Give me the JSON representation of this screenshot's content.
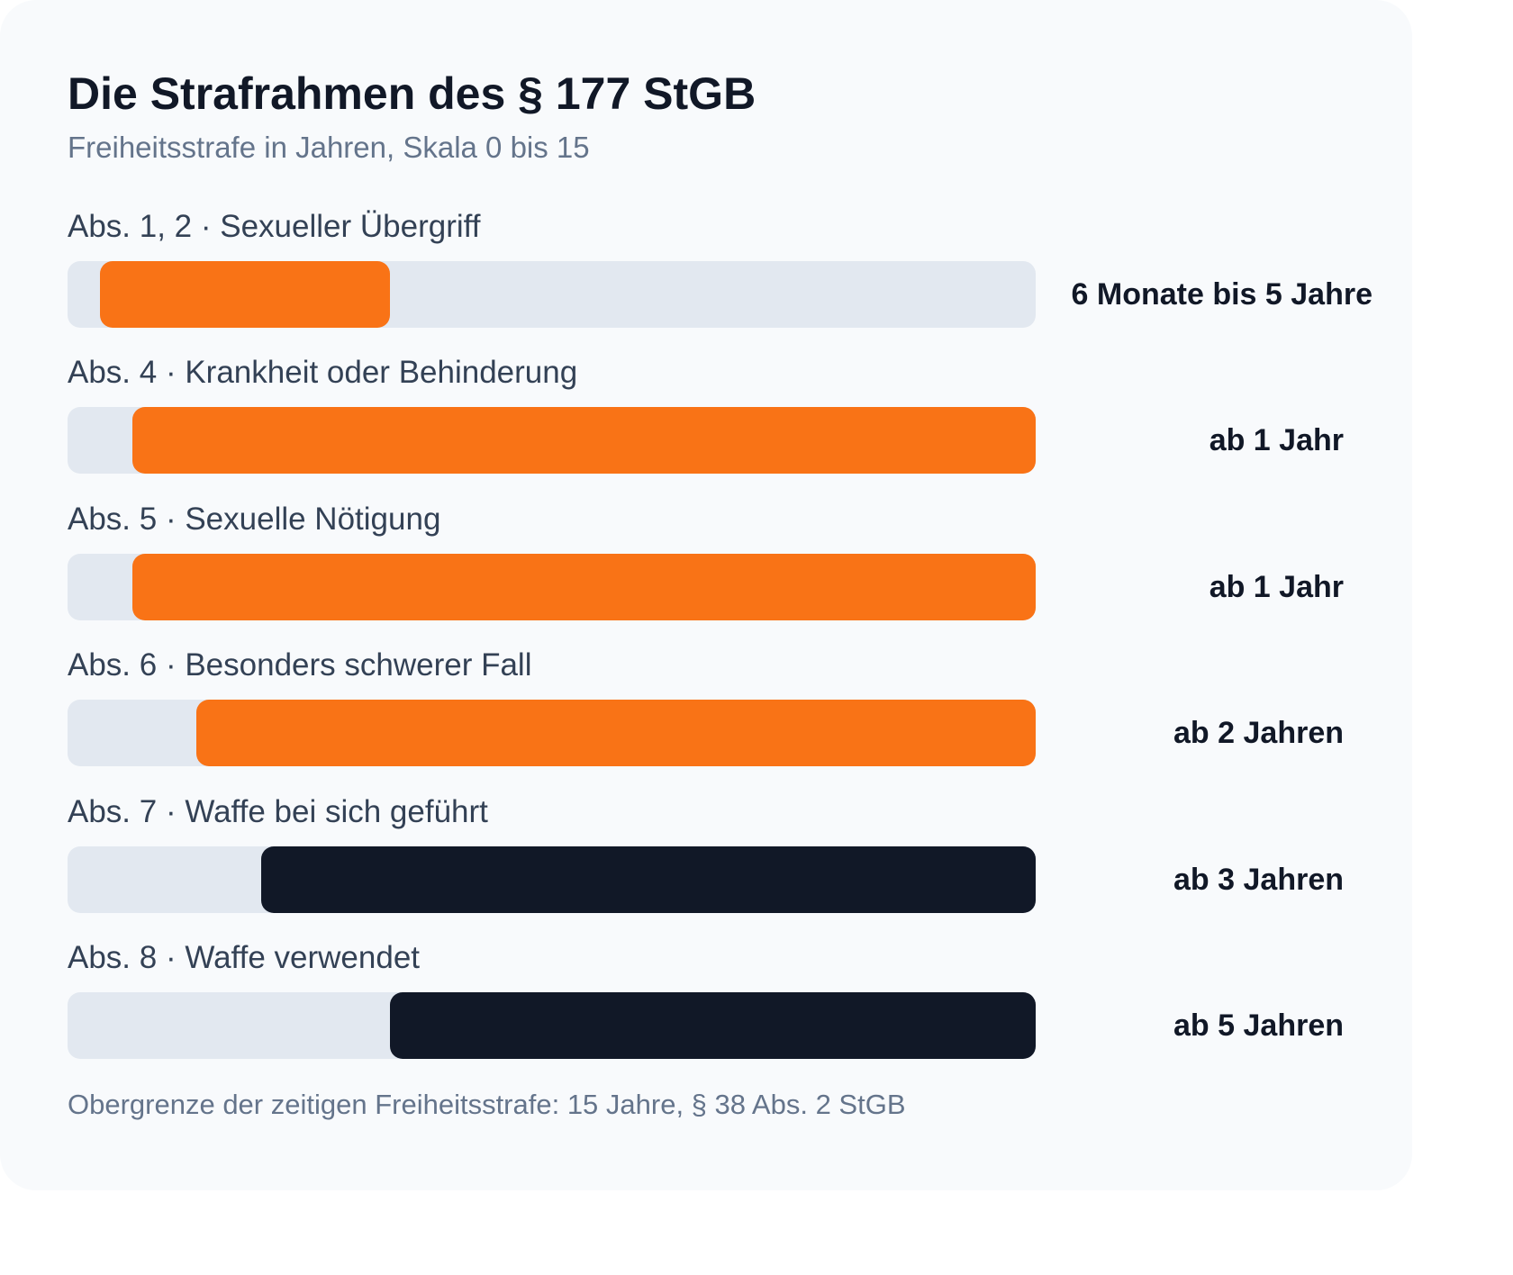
{
  "chart_data": {
    "type": "bar",
    "title": "Die Strafrahmen des § 177 StGB",
    "subtitle": "Freiheitsstrafe in Jahren, Skala 0 bis 15",
    "xlim": [
      0,
      15
    ],
    "footnote": "Obergrenze der zeitigen Freiheitsstrafe: 15 Jahre, § 38 Abs. 2 StGB",
    "rows": [
      {
        "label": "Abs. 1, 2 · Sexueller Übergriff",
        "min": 0.5,
        "max": 5,
        "value_label": "6 Monate bis 5 Jahre",
        "color": "#f97316"
      },
      {
        "label": "Abs. 4 · Krankheit oder Behinderung",
        "min": 1,
        "max": 15,
        "value_label": "ab 1 Jahr",
        "color": "#f97316"
      },
      {
        "label": "Abs. 5 · Sexuelle Nötigung",
        "min": 1,
        "max": 15,
        "value_label": "ab 1 Jahr",
        "color": "#f97316"
      },
      {
        "label": "Abs. 6 · Besonders schwerer Fall",
        "min": 2,
        "max": 15,
        "value_label": "ab 2 Jahren",
        "color": "#f97316"
      },
      {
        "label": "Abs. 7 · Waffe bei sich geführt",
        "min": 3,
        "max": 15,
        "value_label": "ab 3 Jahren",
        "color": "#111827"
      },
      {
        "label": "Abs. 8 · Waffe verwendet",
        "min": 5,
        "max": 15,
        "value_label": "ab 5 Jahren",
        "color": "#111827"
      }
    ]
  }
}
